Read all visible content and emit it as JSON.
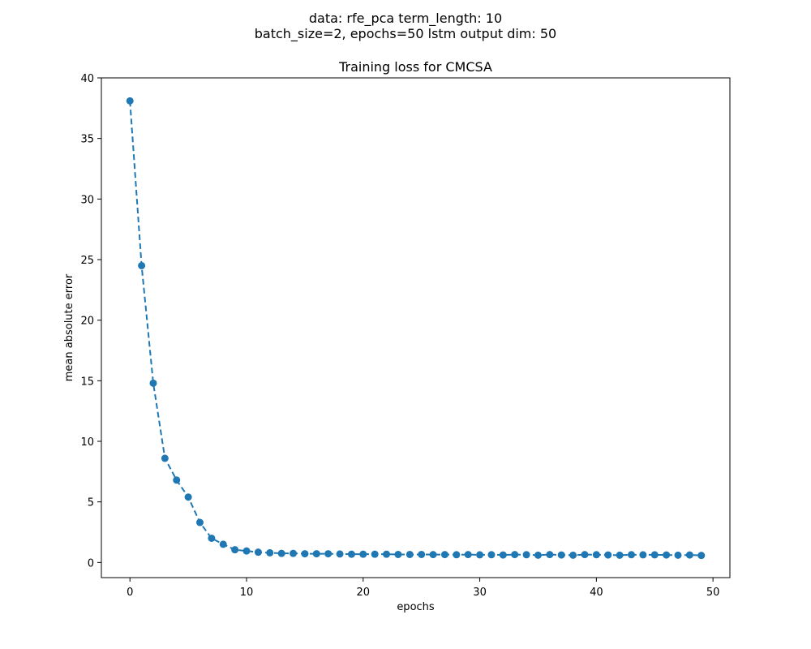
{
  "chart_data": {
    "type": "line",
    "suptitle_lines": [
      "data: rfe_pca term_length: 10",
      "batch_size=2, epochs=50 lstm output dim: 50"
    ],
    "title": "Training loss for CMCSA",
    "xlabel": "epochs",
    "ylabel": "mean absolute error",
    "xlim": [
      -2.45,
      51.45
    ],
    "ylim": [
      -1.25,
      40
    ],
    "xticks": [
      0,
      10,
      20,
      30,
      40,
      50
    ],
    "yticks": [
      0,
      5,
      10,
      15,
      20,
      25,
      30,
      35,
      40
    ],
    "grid": false,
    "color": "#1f77b4",
    "line_style": "dashed",
    "marker": "circle",
    "x": [
      0,
      1,
      2,
      3,
      4,
      5,
      6,
      7,
      8,
      9,
      10,
      11,
      12,
      13,
      14,
      15,
      16,
      17,
      18,
      19,
      20,
      21,
      22,
      23,
      24,
      25,
      26,
      27,
      28,
      29,
      30,
      31,
      32,
      33,
      34,
      35,
      36,
      37,
      38,
      39,
      40,
      41,
      42,
      43,
      44,
      45,
      46,
      47,
      48,
      49
    ],
    "series": [
      {
        "values": [
          38.1,
          24.5,
          14.8,
          8.6,
          6.8,
          5.4,
          3.3,
          2.0,
          1.5,
          1.05,
          0.95,
          0.85,
          0.8,
          0.75,
          0.75,
          0.72,
          0.72,
          0.72,
          0.7,
          0.68,
          0.68,
          0.68,
          0.68,
          0.66,
          0.66,
          0.66,
          0.65,
          0.65,
          0.64,
          0.65,
          0.63,
          0.64,
          0.62,
          0.65,
          0.64,
          0.6,
          0.65,
          0.62,
          0.6,
          0.65,
          0.64,
          0.62,
          0.6,
          0.64,
          0.63,
          0.63,
          0.62,
          0.6,
          0.62,
          0.58
        ]
      }
    ]
  }
}
